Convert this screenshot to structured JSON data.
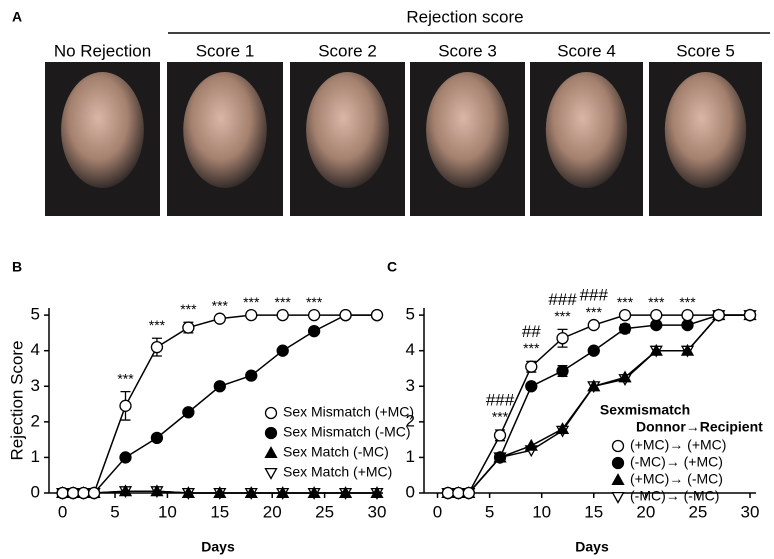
{
  "panel_a": {
    "label": "A",
    "header": "Rejection score",
    "photos": [
      "No Rejection",
      "Score 1",
      "Score 2",
      "Score 3",
      "Score 4",
      "Score 5"
    ]
  },
  "chart_data": [
    {
      "type": "line",
      "panel_label": "B",
      "x_label": "Days",
      "y_label": "Rejection Score",
      "x": [
        0,
        1,
        2,
        3,
        6,
        9,
        12,
        15,
        18,
        21,
        24,
        27,
        30
      ],
      "xlim": [
        -1.3,
        30
      ],
      "xticks": [
        0,
        5,
        10,
        15,
        20,
        25,
        30
      ],
      "ylim": [
        0,
        5.2
      ],
      "yticks": [
        0,
        1,
        2,
        3,
        4,
        5
      ],
      "series": [
        {
          "name": "Sex Mismatch (+MC)",
          "color": "#000000",
          "marker": "circle-open",
          "values": [
            0,
            0,
            0,
            0,
            2.45,
            4.1,
            4.65,
            4.9,
            5,
            5,
            5,
            5,
            5
          ],
          "errors": [
            null,
            null,
            null,
            null,
            0.4,
            0.25,
            0.15,
            null,
            null,
            null,
            null,
            null,
            null
          ]
        },
        {
          "name": "Sex Mismatch (-MC)",
          "color": "#000000",
          "marker": "circle-filled",
          "values": [
            0,
            0,
            0,
            0,
            1.0,
            1.55,
            2.27,
            3.0,
            3.3,
            4.0,
            4.55,
            5,
            5
          ]
        },
        {
          "name": "Sex Match (-MC)",
          "color": "#000000",
          "marker": "triangle-filled",
          "values": [
            0,
            0,
            0,
            0,
            0.05,
            0.05,
            0,
            0,
            0,
            0,
            0,
            0,
            0
          ]
        },
        {
          "name": "Sex Match (+MC)",
          "color": "#000000",
          "marker": "triangle-down-open",
          "values": [
            0,
            0,
            0,
            0,
            0.05,
            0.05,
            0,
            0,
            0,
            0,
            0,
            0,
            0
          ]
        }
      ],
      "annotations": [
        {
          "x": 6,
          "text": "***"
        },
        {
          "x": 9,
          "text": "***"
        },
        {
          "x": 12,
          "text": "***"
        },
        {
          "x": 15,
          "text": "***"
        },
        {
          "x": 18,
          "text": "***"
        },
        {
          "x": 21,
          "text": "***"
        },
        {
          "x": 24,
          "text": "***"
        }
      ]
    },
    {
      "type": "line",
      "panel_label": "C",
      "x_label": "Days",
      "legend_title": "Sexmismatch",
      "legend_subtitle": "Donnor→Recipient",
      "x": [
        1,
        2,
        3,
        6,
        9,
        12,
        15,
        18,
        21,
        24,
        27,
        30
      ],
      "xlim": [
        -1.3,
        30
      ],
      "xticks": [
        0,
        5,
        10,
        15,
        20,
        25,
        30
      ],
      "ylim": [
        0,
        5.2
      ],
      "yticks": [
        0,
        1,
        2,
        3,
        4,
        5
      ],
      "series": [
        {
          "name": "(+MC)→ (+MC)",
          "color": "#000000",
          "marker": "circle-open",
          "values": [
            0,
            0,
            0,
            1.62,
            3.55,
            4.35,
            4.72,
            5,
            5,
            5,
            5,
            5
          ],
          "errors": [
            null,
            null,
            null,
            0.15,
            0.15,
            0.25,
            null,
            null,
            null,
            null,
            null,
            null
          ]
        },
        {
          "name": "(-MC)→ (+MC)",
          "color": "#000000",
          "marker": "circle-filled",
          "values": [
            0,
            0,
            0,
            1.0,
            3.0,
            3.43,
            4.0,
            4.62,
            4.72,
            4.72,
            5,
            5
          ],
          "errors": [
            null,
            null,
            null,
            null,
            null,
            0.15,
            null,
            0.12,
            null,
            null,
            null,
            0.1
          ]
        },
        {
          "name": "(+MC)→ (-MC)",
          "color": "#000000",
          "marker": "triangle-filled",
          "values": [
            0,
            0,
            0,
            1.0,
            1.33,
            1.8,
            3.0,
            3.25,
            4.0,
            4.0,
            5,
            5
          ]
        },
        {
          "name": "(-MC)→ (-MC)",
          "color": "#000000",
          "marker": "triangle-down-open",
          "values": [
            0,
            0,
            0,
            1.0,
            1.2,
            1.75,
            3.0,
            3.2,
            4.0,
            4.0,
            5,
            5
          ]
        }
      ],
      "annotations": [
        {
          "x": 6,
          "text": "***"
        },
        {
          "x": 6,
          "text": "###"
        },
        {
          "x": 9,
          "text": "***"
        },
        {
          "x": 9,
          "text": "##"
        },
        {
          "x": 12,
          "text": "***"
        },
        {
          "x": 12,
          "text": "###"
        },
        {
          "x": 15,
          "text": "***"
        },
        {
          "x": 15,
          "text": "###"
        },
        {
          "x": 18,
          "text": "***"
        },
        {
          "x": 21,
          "text": "***"
        },
        {
          "x": 24,
          "text": "***"
        }
      ]
    }
  ]
}
